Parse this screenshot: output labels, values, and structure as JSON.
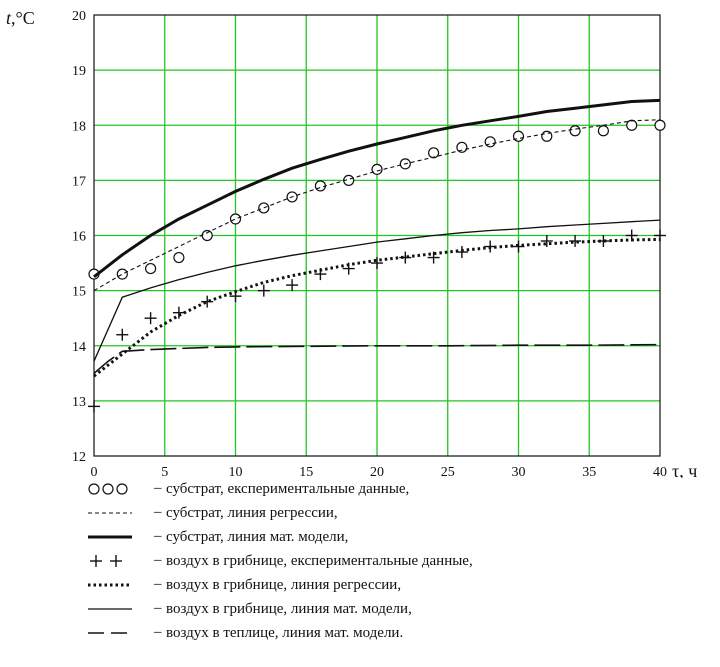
{
  "chart_data": {
    "type": "line",
    "y_axis_title_italic": "t",
    "y_axis_title_rest": ",°C",
    "x_axis_title": "τ, ч",
    "xlim": [
      0,
      40
    ],
    "ylim": [
      12,
      20
    ],
    "xticks": [
      "0",
      "5",
      "10",
      "15",
      "20",
      "25",
      "30",
      "35",
      "40"
    ],
    "yticks": [
      "12",
      "13",
      "14",
      "15",
      "16",
      "17",
      "18",
      "19",
      "20"
    ],
    "grid": true,
    "grid_color": "#22c522",
    "legend_placement": "below",
    "series": [
      {
        "key": "sub_exp",
        "style": "circles",
        "x": [
          0,
          2,
          4,
          6,
          8,
          10,
          12,
          14,
          16,
          18,
          20,
          22,
          24,
          26,
          28,
          30,
          32,
          34,
          36,
          38,
          40
        ],
        "y": [
          15.3,
          15.3,
          15.4,
          15.6,
          16.0,
          16.3,
          16.5,
          16.7,
          16.9,
          17.0,
          17.2,
          17.3,
          17.5,
          17.6,
          17.7,
          17.8,
          17.8,
          17.9,
          17.9,
          18.0,
          18.0
        ]
      },
      {
        "key": "sub_reg",
        "style": "thin-dashed",
        "x": [
          0,
          2,
          4,
          6,
          8,
          10,
          12,
          14,
          16,
          18,
          20,
          22,
          24,
          26,
          28,
          30,
          32,
          34,
          36,
          38,
          40
        ],
        "y": [
          15.0,
          15.3,
          15.55,
          15.8,
          16.05,
          16.3,
          16.5,
          16.7,
          16.87,
          17.02,
          17.17,
          17.3,
          17.42,
          17.55,
          17.66,
          17.76,
          17.85,
          17.93,
          18.0,
          18.08,
          18.1
        ]
      },
      {
        "key": "sub_model",
        "style": "thick-solid",
        "x": [
          0,
          2,
          4,
          6,
          8,
          10,
          12,
          14,
          16,
          18,
          20,
          22,
          24,
          26,
          28,
          30,
          32,
          34,
          36,
          38,
          40
        ],
        "y": [
          15.25,
          15.65,
          16.0,
          16.3,
          16.55,
          16.8,
          17.02,
          17.22,
          17.38,
          17.53,
          17.66,
          17.78,
          17.9,
          18.0,
          18.08,
          18.16,
          18.25,
          18.31,
          18.37,
          18.43,
          18.45
        ]
      },
      {
        "key": "air_exp",
        "style": "crosses",
        "x": [
          0,
          2,
          4,
          6,
          8,
          10,
          12,
          14,
          16,
          18,
          20,
          22,
          24,
          26,
          28,
          30,
          32,
          34,
          36,
          38,
          40
        ],
        "y": [
          12.9,
          14.2,
          14.5,
          14.6,
          14.8,
          14.9,
          15.0,
          15.1,
          15.3,
          15.4,
          15.5,
          15.6,
          15.6,
          15.7,
          15.8,
          15.8,
          15.9,
          15.9,
          15.9,
          16.0,
          16.0
        ]
      },
      {
        "key": "air_reg",
        "style": "dotted",
        "x": [
          0,
          2,
          4,
          6,
          8,
          10,
          12,
          14,
          16,
          18,
          20,
          22,
          24,
          26,
          28,
          30,
          32,
          34,
          36,
          38,
          40
        ],
        "y": [
          13.45,
          13.85,
          14.25,
          14.55,
          14.8,
          14.98,
          15.15,
          15.27,
          15.37,
          15.47,
          15.55,
          15.61,
          15.67,
          15.73,
          15.78,
          15.82,
          15.85,
          15.88,
          15.9,
          15.92,
          15.93
        ]
      },
      {
        "key": "air_model",
        "style": "thin-solid",
        "x": [
          0,
          2,
          4,
          6,
          8,
          10,
          12,
          14,
          16,
          18,
          20,
          22,
          24,
          26,
          28,
          30,
          32,
          34,
          36,
          38,
          40
        ],
        "y": [
          13.72,
          14.88,
          15.05,
          15.2,
          15.33,
          15.45,
          15.55,
          15.64,
          15.72,
          15.8,
          15.88,
          15.94,
          16.0,
          16.05,
          16.09,
          16.12,
          16.16,
          16.19,
          16.22,
          16.25,
          16.28
        ]
      },
      {
        "key": "greenhouse_model",
        "style": "long-dash",
        "x": [
          0,
          1,
          2,
          4,
          6,
          8,
          10,
          15,
          20,
          25,
          30,
          35,
          40
        ],
        "y": [
          13.5,
          13.72,
          13.9,
          13.93,
          13.95,
          13.97,
          13.98,
          13.99,
          14.0,
          14.0,
          14.01,
          14.01,
          14.02
        ]
      }
    ],
    "legend": [
      {
        "key": "sub_exp",
        "label": "субстрат,  експериментальные  данные,"
      },
      {
        "key": "sub_reg",
        "label": "субстрат, линия  регрессии,"
      },
      {
        "key": "sub_model",
        "label": "субстрат, линия мат. модели,"
      },
      {
        "key": "air_exp",
        "label": "воздух  в грибнице,  експериментальные данные,"
      },
      {
        "key": "air_reg",
        "label": "воздух в грибнице, линия регрессии,"
      },
      {
        "key": "air_model",
        "label": "воздух в грибнице, линия  мат.  модели,"
      },
      {
        "key": "greenhouse_model",
        "label": "воздух в теплице, линия  мат.  модели."
      }
    ],
    "legend_dash": "–"
  }
}
